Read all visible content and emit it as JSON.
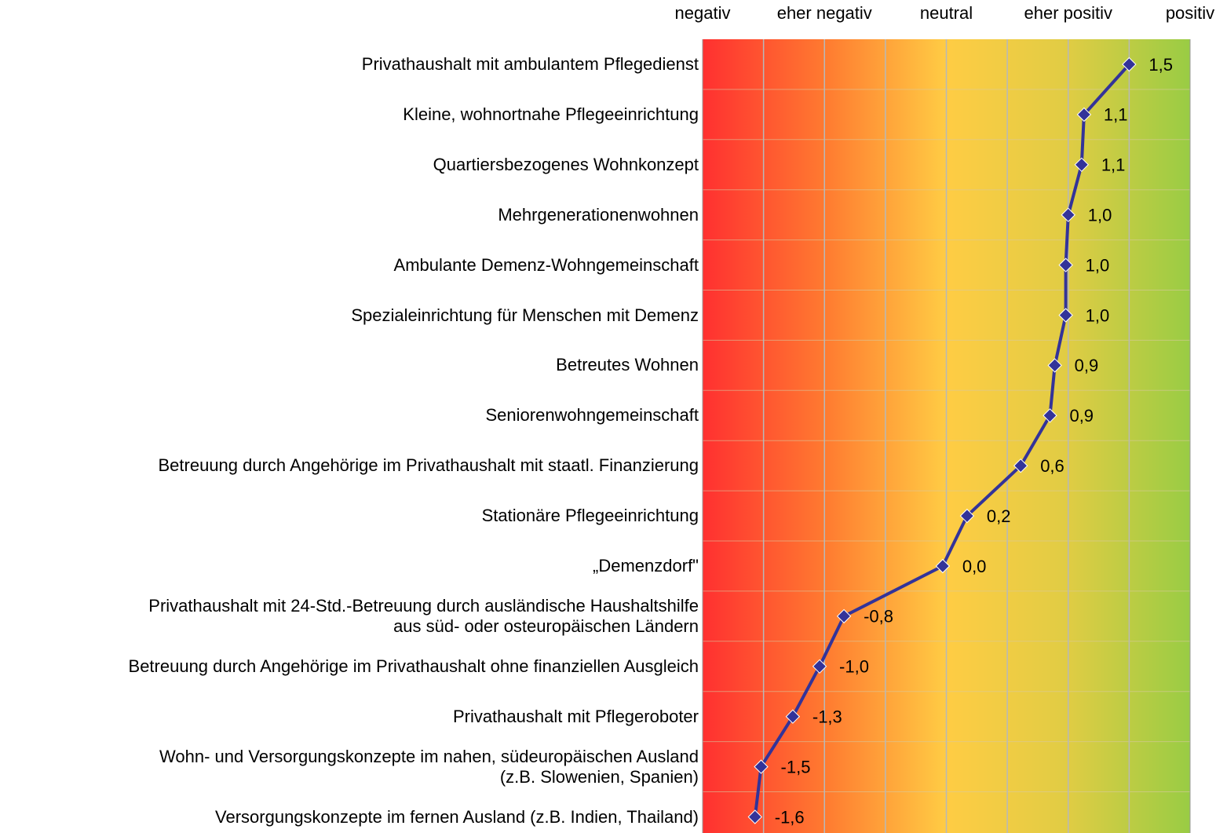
{
  "chart_data": {
    "type": "line",
    "orientation": "horizontal",
    "categories": [
      "Privathaushalt mit ambulantem Pflegedienst",
      "Kleine, wohnortnahe Pflegeeinrichtung",
      "Quartiersbezogenes Wohnkonzept",
      "Mehrgenerationenwohnen",
      "Ambulante Demenz-Wohngemeinschaft",
      "Spezialeinrichtung für Menschen mit Demenz",
      "Betreutes Wohnen",
      "Seniorenwohngemeinschaft",
      "Betreuung durch Angehörige im Privathaushalt mit staatl. Finanzierung",
      "Stationäre Pflegeeinrichtung",
      "„Demenzdorf\"",
      "Privathaushalt mit 24-Std.-Betreuung durch ausländische Haushaltshilfe\naus süd- oder osteuropäischen Ländern",
      "Betreuung durch Angehörige im Privathaushalt ohne finanziellen Ausgleich",
      "Privathaushalt mit Pflegeroboter",
      "Wohn- und Versorgungskonzepte im nahen, südeuropäischen Ausland\n(z.B. Slowenien, Spanien)",
      "Versorgungskonzepte im fernen Ausland (z.B. Indien, Thailand)"
    ],
    "values": [
      1.5,
      1.13,
      1.11,
      1.0,
      0.98,
      0.98,
      0.89,
      0.85,
      0.61,
      0.17,
      -0.03,
      -0.84,
      -1.04,
      -1.26,
      -1.52,
      -1.57
    ],
    "value_labels": [
      "1,5",
      "1,1",
      "1,1",
      "1,0",
      "1,0",
      "1,0",
      "0,9",
      "0,9",
      "0,6",
      "0,2",
      "0,0",
      "-0,8",
      "-1,0",
      "-1,3",
      "-1,5",
      "-1,6"
    ],
    "color": "#333399",
    "xlim": [
      -2,
      2
    ],
    "xticks": [
      {
        "value": -2,
        "label": "negativ"
      },
      {
        "value": -1,
        "label": "eher negativ"
      },
      {
        "value": 0,
        "label": "neutral"
      },
      {
        "value": 1,
        "label": "eher positiv"
      },
      {
        "value": 2,
        "label": "positiv"
      }
    ],
    "minor_xticks": [
      -1.5,
      -0.5,
      0.5,
      1.5
    ],
    "grid": true
  }
}
